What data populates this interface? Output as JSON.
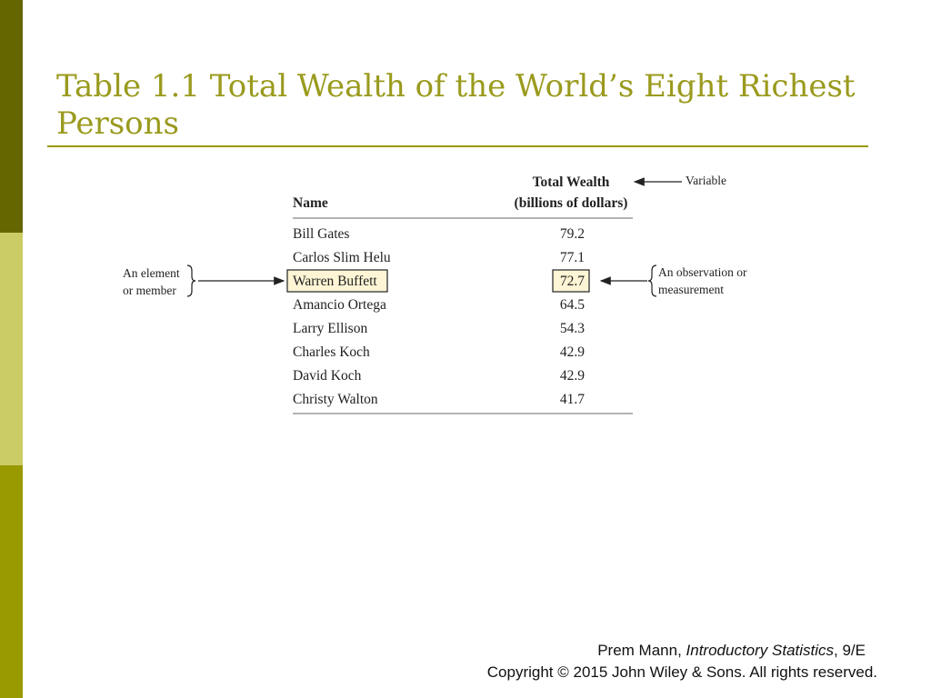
{
  "title": "Table 1.1 Total Wealth of the World’s Eight Richest Persons",
  "table": {
    "header": {
      "name": "Name",
      "wealth_line1": "Total Wealth",
      "wealth_line2": "(billions of dollars)"
    },
    "rows": [
      [
        "Bill Gates",
        79.2
      ],
      [
        "Carlos Slim Helu",
        77.1
      ],
      [
        "Warren Buffett",
        72.7
      ],
      [
        "Amancio Ortega",
        64.5
      ],
      [
        "Larry Ellison",
        54.3
      ],
      [
        "Charles Koch",
        42.9
      ],
      [
        "David Koch",
        42.9
      ],
      [
        "Christy Walton",
        41.7
      ]
    ]
  },
  "annotations": {
    "variable": "Variable",
    "element_line1": "An element",
    "element_line2": "or member",
    "observation_line1": "An observation or",
    "observation_line2": "measurement"
  },
  "footer": {
    "author": "Prem Mann, ",
    "book": "Introductory Statistics",
    "edition": ", 9/E",
    "copyright": "Copyright © 2015 John Wiley & Sons. All rights reserved."
  }
}
